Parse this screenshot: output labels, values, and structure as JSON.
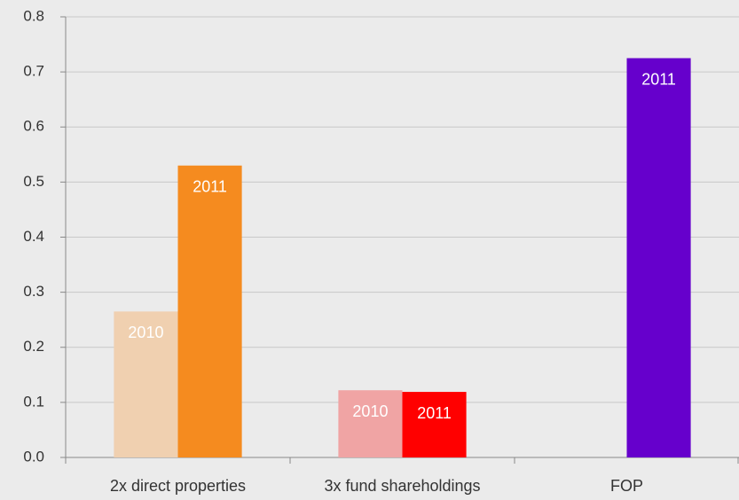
{
  "chart_data": {
    "type": "bar",
    "categories": [
      "2x direct properties",
      "3x fund shareholdings",
      "FOP"
    ],
    "series": [
      {
        "name": "2010",
        "values": [
          0.265,
          0.122,
          null
        ],
        "colors": [
          "#f0d0b0",
          "#f0a4a4",
          null
        ]
      },
      {
        "name": "2011",
        "values": [
          0.53,
          0.119,
          0.725
        ],
        "colors": [
          "#f58b1f",
          "#ff0000",
          "#6600cc"
        ]
      }
    ],
    "ylim": [
      0,
      0.8
    ],
    "yticks": [
      {
        "value": 0,
        "label": "0.0"
      },
      0.1,
      0.2,
      0.3,
      0.4,
      0.5,
      0.6,
      0.7,
      0.8
    ],
    "grid": true
  }
}
